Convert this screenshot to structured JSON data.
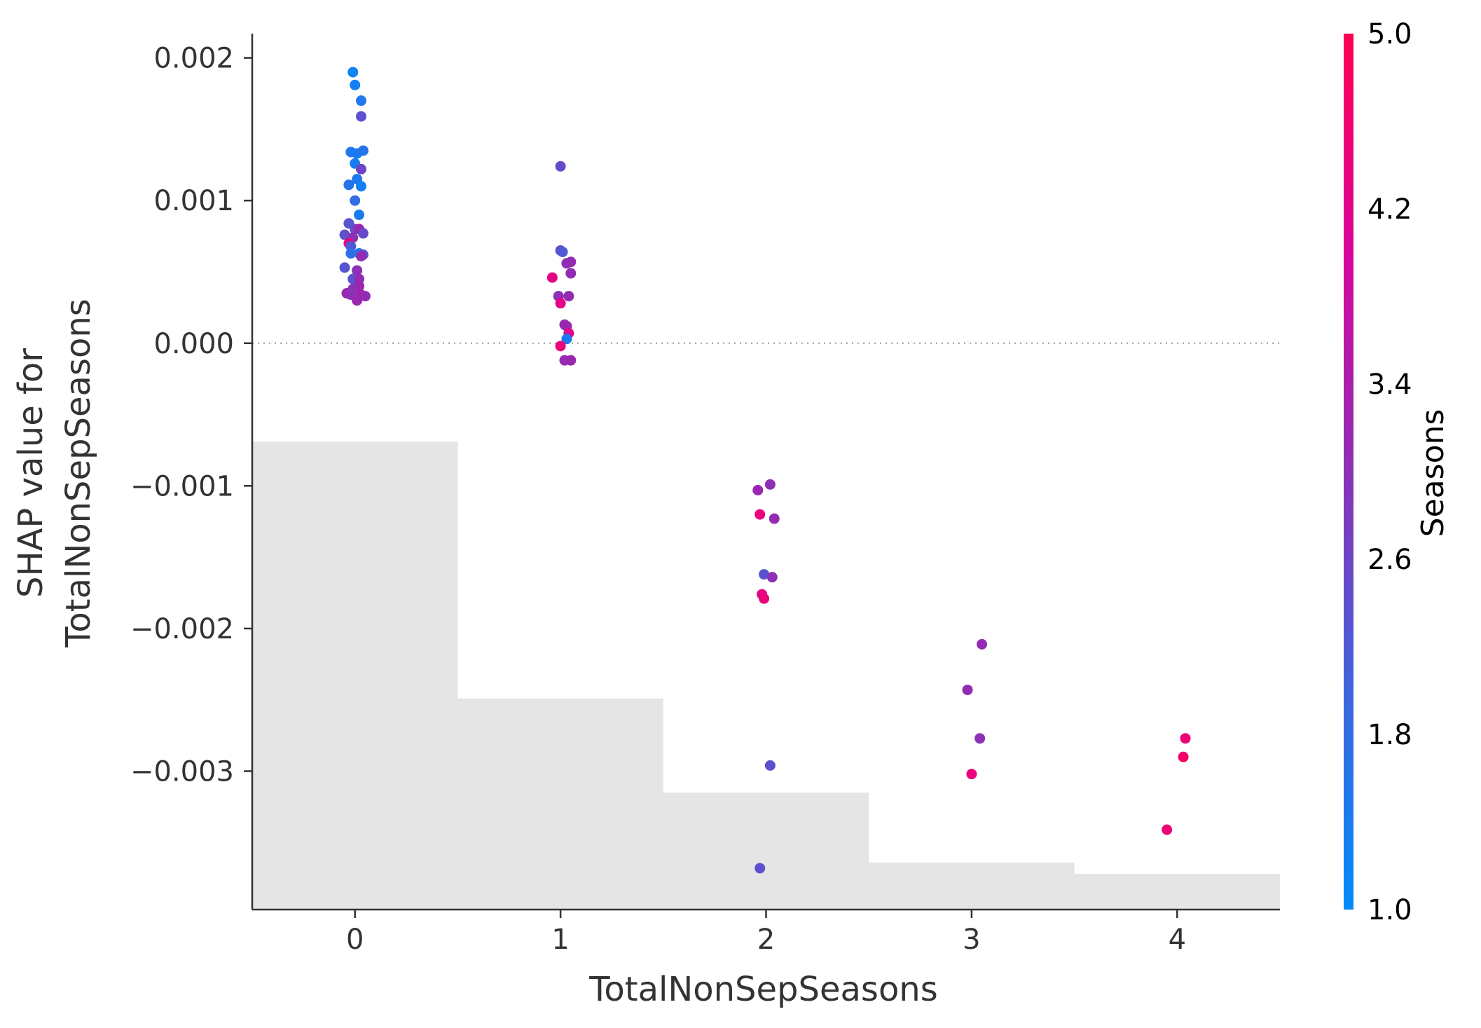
{
  "chart_data": {
    "type": "scatter",
    "xlabel": "TotalNonSepSeasons",
    "ylabel_lines": [
      "SHAP value for",
      "TotalNonSepSeasons"
    ],
    "x_ticks": [
      0,
      1,
      2,
      3,
      4
    ],
    "x_tick_labels": [
      "0",
      "1",
      "2",
      "3",
      "4"
    ],
    "xlim": [
      -0.5,
      4.5
    ],
    "y_ticks": [
      0.002,
      0.001,
      0.0,
      -0.001,
      -0.002,
      -0.003
    ],
    "y_tick_labels": [
      "0.002",
      "0.001",
      "0.000",
      "−0.001",
      "−0.002",
      "−0.003"
    ],
    "ylim": [
      -0.00397,
      0.00217
    ],
    "zero_line": true,
    "grid": false,
    "histogram": {
      "bin_edges": [
        -0.5,
        0.5,
        1.5,
        2.5,
        3.5,
        4.5
      ],
      "tops": [
        -0.00069,
        -0.00249,
        -0.00315,
        -0.00364,
        -0.00372
      ],
      "color": "#e5e5e5"
    },
    "colorbar": {
      "title": "Seasons",
      "range": [
        1.0,
        5.0
      ],
      "tick_values": [
        5.0,
        4.2,
        3.4,
        2.6,
        1.8,
        1.0
      ],
      "tick_labels": [
        "5.0",
        "4.2",
        "3.4",
        "2.6",
        "1.8",
        "1.0"
      ],
      "colors": [
        "#008bfb",
        "#3f64dd",
        "#8c30b6",
        "#d9059a",
        "#ff0052"
      ]
    },
    "points": [
      {
        "x": -0.01,
        "y": 0.0019,
        "c": 1.2
      },
      {
        "x": 0.0,
        "y": 0.00181,
        "c": 1.3
      },
      {
        "x": 0.03,
        "y": 0.0017,
        "c": 1.5
      },
      {
        "x": 0.03,
        "y": 0.00159,
        "c": 2.4
      },
      {
        "x": -0.02,
        "y": 0.00134,
        "c": 1.5
      },
      {
        "x": 0.01,
        "y": 0.00133,
        "c": 1.4
      },
      {
        "x": 0.04,
        "y": 0.00135,
        "c": 1.6
      },
      {
        "x": 0.0,
        "y": 0.00126,
        "c": 1.4
      },
      {
        "x": 0.03,
        "y": 0.00122,
        "c": 2.6
      },
      {
        "x": 0.01,
        "y": 0.00115,
        "c": 1.5
      },
      {
        "x": -0.03,
        "y": 0.00111,
        "c": 1.6
      },
      {
        "x": 0.03,
        "y": 0.0011,
        "c": 1.3
      },
      {
        "x": 0.0,
        "y": 0.001,
        "c": 1.8
      },
      {
        "x": 0.02,
        "y": 0.0009,
        "c": 1.4
      },
      {
        "x": -0.03,
        "y": 0.00084,
        "c": 2.3
      },
      {
        "x": 0.0,
        "y": 0.0008,
        "c": 2.5
      },
      {
        "x": 0.02,
        "y": 0.0008,
        "c": 3.2
      },
      {
        "x": -0.05,
        "y": 0.00076,
        "c": 2.4
      },
      {
        "x": 0.04,
        "y": 0.00077,
        "c": 2.5
      },
      {
        "x": -0.01,
        "y": 0.00074,
        "c": 3.0
      },
      {
        "x": -0.03,
        "y": 0.0007,
        "c": 4.4
      },
      {
        "x": -0.02,
        "y": 0.00068,
        "c": 2.2
      },
      {
        "x": 0.02,
        "y": 0.00063,
        "c": 1.6
      },
      {
        "x": -0.02,
        "y": 0.00063,
        "c": 1.7
      },
      {
        "x": 0.04,
        "y": 0.00062,
        "c": 2.4
      },
      {
        "x": 0.03,
        "y": 0.00061,
        "c": 3.1
      },
      {
        "x": -0.05,
        "y": 0.00053,
        "c": 2.3
      },
      {
        "x": 0.01,
        "y": 0.00051,
        "c": 3.0
      },
      {
        "x": -0.01,
        "y": 0.00045,
        "c": 2.3
      },
      {
        "x": 0.02,
        "y": 0.00045,
        "c": 3.1
      },
      {
        "x": 0.02,
        "y": 0.0004,
        "c": 3.2
      },
      {
        "x": -0.04,
        "y": 0.00035,
        "c": 3.2
      },
      {
        "x": -0.02,
        "y": 0.00034,
        "c": 3.0
      },
      {
        "x": 0.03,
        "y": 0.00034,
        "c": 3.3
      },
      {
        "x": 0.05,
        "y": 0.00033,
        "c": 3.1
      },
      {
        "x": 0.01,
        "y": 0.0003,
        "c": 3.2
      },
      {
        "x": -0.01,
        "y": 0.00038,
        "c": 3.0
      },
      {
        "x": 0.0,
        "y": 0.00124,
        "c": 2.5
      },
      {
        "x": 0.0,
        "y": 0.00065,
        "c": 2.4
      },
      {
        "x": 0.01,
        "y": 0.00064,
        "c": 2.2
      },
      {
        "x": 0.03,
        "y": 0.00056,
        "c": 3.0
      },
      {
        "x": 0.05,
        "y": 0.00057,
        "c": 3.1
      },
      {
        "x": 0.05,
        "y": 0.00049,
        "c": 3.1
      },
      {
        "x": -0.04,
        "y": 0.00046,
        "c": 4.3
      },
      {
        "x": -0.01,
        "y": 0.00033,
        "c": 3.0
      },
      {
        "x": 0.04,
        "y": 0.00033,
        "c": 3.1
      },
      {
        "x": 0.0,
        "y": 0.00028,
        "c": 4.3
      },
      {
        "x": 0.02,
        "y": 0.00013,
        "c": 3.1
      },
      {
        "x": 0.03,
        "y": 0.00012,
        "c": 3.2
      },
      {
        "x": 0.04,
        "y": 7e-05,
        "c": 4.2
      },
      {
        "x": 0.03,
        "y": 3e-05,
        "c": 1.5
      },
      {
        "x": 0.0,
        "y": -2e-05,
        "c": 4.4
      },
      {
        "x": 0.02,
        "y": -0.00012,
        "c": 3.1
      },
      {
        "x": 0.05,
        "y": -0.00012,
        "c": 3.2
      },
      {
        "x": -0.04,
        "y": -0.00103,
        "c": 3.2
      },
      {
        "x": 0.02,
        "y": -0.00099,
        "c": 3.0
      },
      {
        "x": -0.03,
        "y": -0.0012,
        "c": 4.4
      },
      {
        "x": 0.04,
        "y": -0.00123,
        "c": 3.1
      },
      {
        "x": -0.01,
        "y": -0.00162,
        "c": 2.3
      },
      {
        "x": 0.03,
        "y": -0.00164,
        "c": 3.0
      },
      {
        "x": -0.02,
        "y": -0.00176,
        "c": 4.3
      },
      {
        "x": -0.01,
        "y": -0.00179,
        "c": 4.4
      },
      {
        "x": 0.02,
        "y": -0.00296,
        "c": 2.4
      },
      {
        "x": -0.03,
        "y": -0.00368,
        "c": 2.4
      },
      {
        "x": 0.05,
        "y": -0.00211,
        "c": 3.1
      },
      {
        "x": -0.02,
        "y": -0.00243,
        "c": 3.1
      },
      {
        "x": 0.04,
        "y": -0.00277,
        "c": 3.0
      },
      {
        "x": 0.0,
        "y": -0.00302,
        "c": 4.4
      },
      {
        "x": 0.04,
        "y": -0.00277,
        "c": 4.5
      },
      {
        "x": 0.03,
        "y": -0.0029,
        "c": 4.7
      },
      {
        "x": -0.05,
        "y": -0.00341,
        "c": 4.5
      }
    ],
    "point_offsets_bin": [
      0,
      0,
      0,
      0,
      0,
      0,
      0,
      0,
      0,
      0,
      0,
      0,
      0,
      0,
      0,
      0,
      0,
      0,
      0,
      0,
      0,
      0,
      0,
      0,
      0,
      0,
      0,
      0,
      0,
      0,
      0,
      0,
      0,
      0,
      0,
      0,
      0,
      1,
      1,
      1,
      1,
      1,
      1,
      1,
      1,
      1,
      1,
      1,
      1,
      1,
      1,
      1,
      1,
      1,
      2,
      2,
      2,
      2,
      2,
      2,
      2,
      2,
      2,
      2,
      3,
      3,
      3,
      3,
      4,
      4,
      4
    ]
  }
}
